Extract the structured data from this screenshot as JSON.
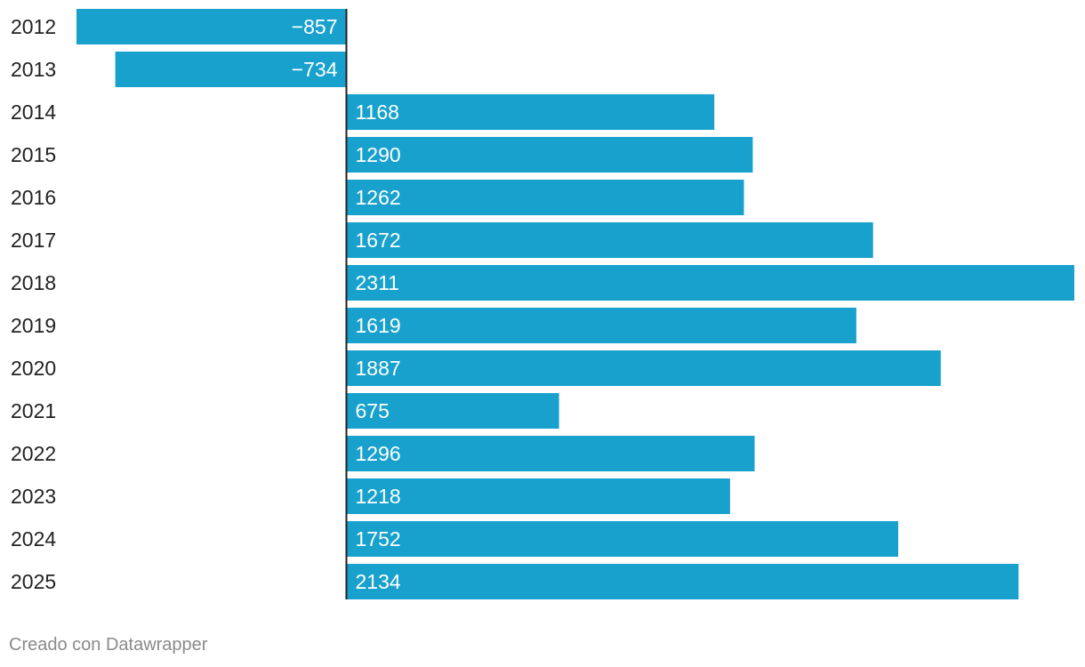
{
  "chart_data": {
    "type": "bar",
    "orientation": "horizontal",
    "categories": [
      "2012",
      "2013",
      "2014",
      "2015",
      "2016",
      "2017",
      "2018",
      "2019",
      "2020",
      "2021",
      "2022",
      "2023",
      "2024",
      "2025"
    ],
    "values": [
      -857,
      -734,
      1168,
      1290,
      1262,
      1672,
      2311,
      1619,
      1887,
      675,
      1296,
      1218,
      1752,
      2134
    ],
    "value_labels": [
      "−857",
      "−734",
      "1168",
      "1290",
      "1262",
      "1672",
      "2311",
      "1619",
      "1887",
      "675",
      "1296",
      "1218",
      "1752",
      "2134"
    ],
    "xlim": [
      -857,
      2311
    ],
    "grid": false,
    "bar_color": "#18a1cd"
  },
  "footer": {
    "credit": "Creado con Datawrapper"
  }
}
